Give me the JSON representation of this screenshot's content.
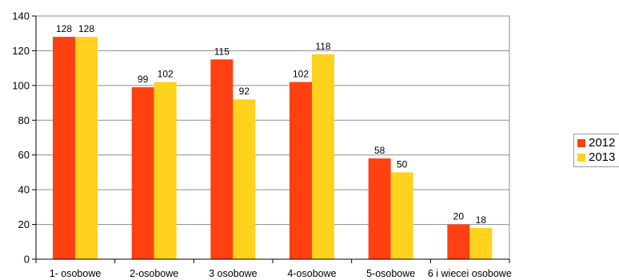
{
  "chart_data": {
    "type": "bar",
    "title": "",
    "xlabel": "",
    "ylabel": "",
    "categories": [
      "1- osobowe",
      "2-osobowe",
      "3 osobowe",
      "4-osobowe",
      "5-osobowe",
      "6 i wiecei osobowe"
    ],
    "series": [
      {
        "name": "2012",
        "color": "#ff4010",
        "values": [
          128,
          99,
          115,
          102,
          58,
          20
        ]
      },
      {
        "name": "2013",
        "color": "#ffd21e",
        "values": [
          128,
          102,
          92,
          118,
          50,
          18
        ]
      }
    ],
    "ylim": [
      0,
      140
    ],
    "yticks": [
      0,
      20,
      40,
      60,
      80,
      100,
      120,
      140
    ],
    "grid": true,
    "legend_position": "right",
    "data_labels": true
  }
}
